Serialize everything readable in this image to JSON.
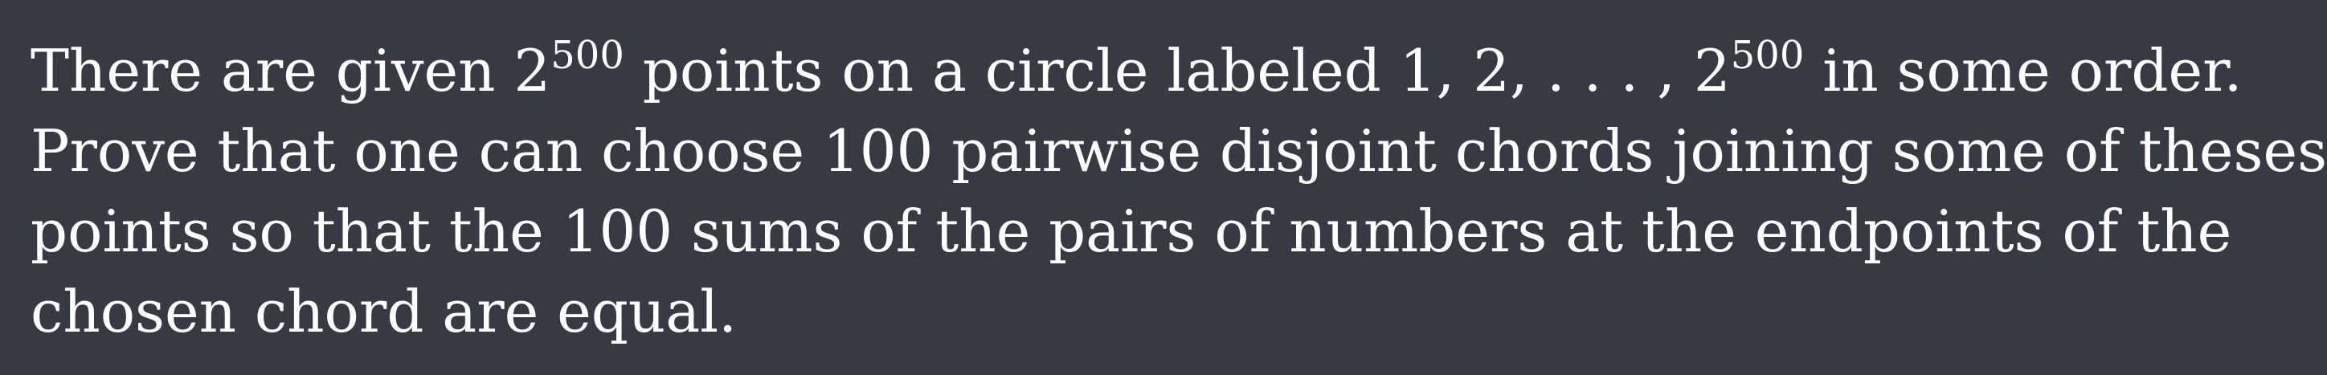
{
  "problem": {
    "lines": [
      {
        "before_base": "There are given ",
        "base_a": "2",
        "exp_a": "500",
        "middle": " points on a circle labeled 1, 2, . . . , ",
        "base_b": "2",
        "exp_b": "500",
        "after": " in some order."
      },
      {
        "text": "Prove that one can choose 100 pairwise disjoint chords joining some of theses"
      },
      {
        "text": "points so that the 100 sums of the pairs of numbers at the endpoints of the"
      },
      {
        "text": "chosen chord are equal."
      }
    ]
  }
}
